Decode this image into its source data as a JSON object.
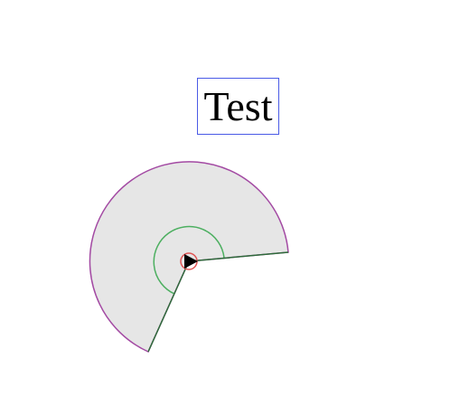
{
  "title": "Test",
  "colors": {
    "title_border": "#4a5ae6",
    "sector_fill": "#e6e6e6",
    "sector_stroke": "#a34aa3",
    "inner_arc_stroke": "#4caf60",
    "ray_stroke": "#2e6b3a",
    "origin_ring": "#e05555",
    "origin_arrow": "#000000"
  },
  "icons": {
    "origin_marker": "play-arrow-icon"
  }
}
